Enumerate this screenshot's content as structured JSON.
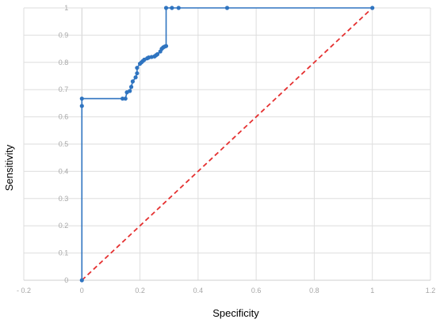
{
  "chart_data": {
    "type": "line",
    "xlabel": "Specificity",
    "ylabel": "Sensitivity",
    "xlim": [
      -0.2,
      1.2
    ],
    "ylim": [
      0,
      1
    ],
    "x_ticks": [
      "- 0.2",
      "0",
      "0.2",
      "0.4",
      "0.6",
      "0.8",
      "1",
      "1.2"
    ],
    "y_ticks": [
      "0",
      "0.1",
      "0.2",
      "0.3",
      "0.4",
      "0.5",
      "0.6",
      "0.7",
      "0.8",
      "0.9",
      "1"
    ],
    "grid": true,
    "colors": {
      "roc": "#2f74c0",
      "reference": "#e53030",
      "grid": "#dedede",
      "tick_text": "#a6a6a6"
    },
    "series": [
      {
        "style": "smooth-line-with-markers",
        "points": [
          [
            0,
            0
          ],
          [
            0,
            0.64
          ],
          [
            0,
            0.667
          ],
          [
            0.14,
            0.667
          ],
          [
            0.15,
            0.667
          ],
          [
            0.155,
            0.69
          ],
          [
            0.165,
            0.695
          ],
          [
            0.17,
            0.71
          ],
          [
            0.175,
            0.73
          ],
          [
            0.185,
            0.745
          ],
          [
            0.19,
            0.76
          ],
          [
            0.19,
            0.78
          ],
          [
            0.2,
            0.795
          ],
          [
            0.205,
            0.8
          ],
          [
            0.21,
            0.805
          ],
          [
            0.215,
            0.81
          ],
          [
            0.225,
            0.815
          ],
          [
            0.23,
            0.818
          ],
          [
            0.24,
            0.82
          ],
          [
            0.25,
            0.822
          ],
          [
            0.255,
            0.826
          ],
          [
            0.26,
            0.83
          ],
          [
            0.27,
            0.84
          ],
          [
            0.275,
            0.85
          ],
          [
            0.28,
            0.855
          ],
          [
            0.285,
            0.858
          ],
          [
            0.29,
            0.86
          ],
          [
            0.29,
            1
          ],
          [
            0.31,
            1
          ],
          [
            0.333,
            1
          ],
          [
            0.5,
            1
          ],
          [
            1,
            1
          ]
        ]
      },
      {
        "style": "dashed-reference",
        "points": [
          [
            0,
            0
          ],
          [
            1,
            1
          ]
        ]
      }
    ]
  }
}
